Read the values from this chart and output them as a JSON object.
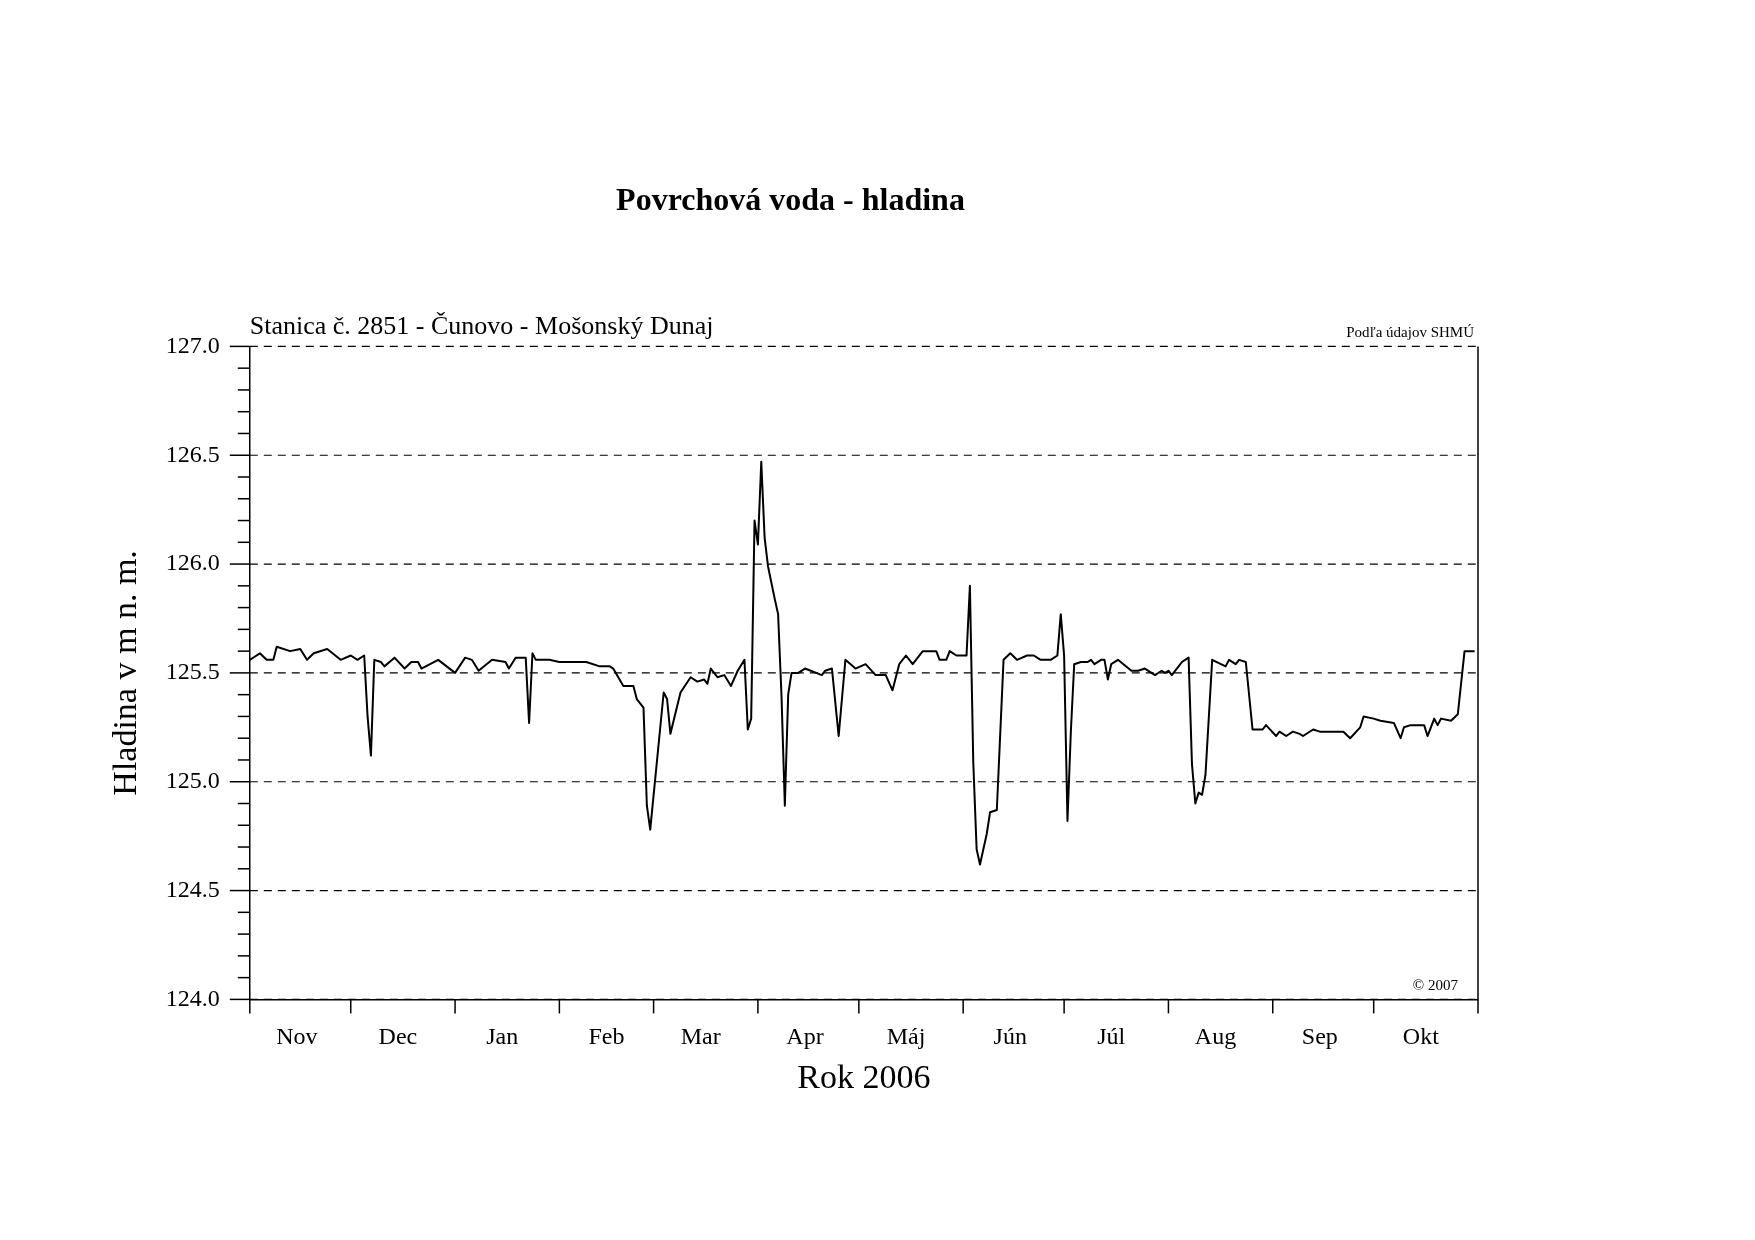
{
  "chart_data": {
    "type": "line",
    "title": "Povrchová voda - hladina",
    "subtitle": "Stanica č. 2851 - Čunovo - Mošonský Dunaj",
    "xlabel": "Rok 2006",
    "ylabel": "Hladina v m n. m.",
    "annotations": [
      "Podľa údajov SHMÚ",
      "© 2007"
    ],
    "x": [
      "2005-11-01",
      "2005-11-04",
      "2005-11-06",
      "2005-11-08",
      "2005-11-09",
      "2005-11-13",
      "2005-11-16",
      "2005-11-18",
      "2005-11-20",
      "2005-11-24",
      "2005-11-28",
      "2005-12-01",
      "2005-12-03",
      "2005-12-05",
      "2005-12-06",
      "2005-12-07",
      "2005-12-08",
      "2005-12-10",
      "2005-12-11",
      "2005-12-14",
      "2005-12-17",
      "2005-12-19",
      "2005-12-21",
      "2005-12-22",
      "2005-12-27",
      "2006-01-01",
      "2006-01-04",
      "2006-01-06",
      "2006-01-08",
      "2006-01-12",
      "2006-01-16",
      "2006-01-17",
      "2006-01-19",
      "2006-01-22",
      "2006-01-23",
      "2006-01-24",
      "2006-01-25",
      "2006-01-29",
      "2006-02-01",
      "2006-02-09",
      "2006-02-13",
      "2006-02-16",
      "2006-02-17",
      "2006-02-20",
      "2006-02-23",
      "2006-02-24",
      "2006-02-26",
      "2006-02-27",
      "2006-02-28",
      "2006-03-04",
      "2006-03-05",
      "2006-03-06",
      "2006-03-09",
      "2006-03-12",
      "2006-03-14",
      "2006-03-16",
      "2006-03-17",
      "2006-03-18",
      "2006-03-20",
      "2006-03-22",
      "2006-03-24",
      "2006-03-26",
      "2006-03-28",
      "2006-03-29",
      "2006-03-30",
      "2006-03-31",
      "2006-04-01",
      "2006-04-02",
      "2006-04-03",
      "2006-04-04",
      "2006-04-06",
      "2006-04-07",
      "2006-04-08",
      "2006-04-09",
      "2006-04-10",
      "2006-04-11",
      "2006-04-13",
      "2006-04-15",
      "2006-04-20",
      "2006-04-21",
      "2006-04-23",
      "2006-04-25",
      "2006-04-27",
      "2006-04-30",
      "2006-05-03",
      "2006-05-06",
      "2006-05-09",
      "2006-05-11",
      "2006-05-13",
      "2006-05-15",
      "2006-05-17",
      "2006-05-20",
      "2006-05-24",
      "2006-05-25",
      "2006-05-27",
      "2006-05-28",
      "2006-05-30",
      "2006-06-02",
      "2006-06-03",
      "2006-06-04",
      "2006-06-05",
      "2006-06-06",
      "2006-06-08",
      "2006-06-09",
      "2006-06-11",
      "2006-06-13",
      "2006-06-15",
      "2006-06-17",
      "2006-06-20",
      "2006-06-22",
      "2006-06-24",
      "2006-06-27",
      "2006-06-29",
      "2006-06-30",
      "2006-07-01",
      "2006-07-02",
      "2006-07-03",
      "2006-07-04",
      "2006-07-06",
      "2006-07-08",
      "2006-07-09",
      "2006-07-10",
      "2006-07-12",
      "2006-07-13",
      "2006-07-14",
      "2006-07-15",
      "2006-07-17",
      "2006-07-21",
      "2006-07-23",
      "2006-07-25",
      "2006-07-28",
      "2006-07-30",
      "2006-07-31",
      "2006-08-01",
      "2006-08-02",
      "2006-08-05",
      "2006-08-07",
      "2006-08-08",
      "2006-08-09",
      "2006-08-10",
      "2006-08-11",
      "2006-08-12",
      "2006-08-14",
      "2006-08-18",
      "2006-08-19",
      "2006-08-21",
      "2006-08-22",
      "2006-08-24",
      "2006-08-26",
      "2006-08-29",
      "2006-08-30",
      "2006-09-02",
      "2006-09-03",
      "2006-09-05",
      "2006-09-07",
      "2006-09-09",
      "2006-09-10",
      "2006-09-13",
      "2006-09-15",
      "2006-09-20",
      "2006-09-22",
      "2006-09-24",
      "2006-09-27",
      "2006-09-28",
      "2006-10-01",
      "2006-10-03",
      "2006-10-07",
      "2006-10-09",
      "2006-10-10",
      "2006-10-12",
      "2006-10-16",
      "2006-10-17",
      "2006-10-19",
      "2006-10-20",
      "2006-10-21",
      "2006-10-24",
      "2006-10-26",
      "2006-10-28",
      "2006-10-31"
    ],
    "series": [
      {
        "color": "#000000",
        "values": [
          125.56,
          125.59,
          125.56,
          125.56,
          125.62,
          125.6,
          125.61,
          125.56,
          125.59,
          125.61,
          125.56,
          125.58,
          125.56,
          125.58,
          125.3,
          125.12,
          125.56,
          125.55,
          125.53,
          125.57,
          125.52,
          125.55,
          125.55,
          125.52,
          125.56,
          125.5,
          125.57,
          125.56,
          125.51,
          125.56,
          125.55,
          125.52,
          125.57,
          125.57,
          125.27,
          125.59,
          125.56,
          125.56,
          125.55,
          125.55,
          125.53,
          125.53,
          125.52,
          125.44,
          125.44,
          125.38,
          125.34,
          124.89,
          124.78,
          125.41,
          125.38,
          125.22,
          125.41,
          125.48,
          125.46,
          125.47,
          125.45,
          125.52,
          125.48,
          125.49,
          125.44,
          125.51,
          125.56,
          125.24,
          125.29,
          126.2,
          126.09,
          126.47,
          126.12,
          125.99,
          125.84,
          125.77,
          125.4,
          124.89,
          125.4,
          125.5,
          125.5,
          125.52,
          125.49,
          125.51,
          125.52,
          125.21,
          125.56,
          125.52,
          125.54,
          125.49,
          125.49,
          125.42,
          125.54,
          125.58,
          125.54,
          125.6,
          125.6,
          125.56,
          125.56,
          125.6,
          125.58,
          125.58,
          125.9,
          125.09,
          124.69,
          124.62,
          124.76,
          124.86,
          124.87,
          125.56,
          125.59,
          125.56,
          125.58,
          125.58,
          125.56,
          125.56,
          125.58,
          125.77,
          125.58,
          124.82,
          125.23,
          125.54,
          125.55,
          125.55,
          125.56,
          125.54,
          125.56,
          125.56,
          125.47,
          125.54,
          125.56,
          125.51,
          125.51,
          125.52,
          125.49,
          125.51,
          125.5,
          125.51,
          125.49,
          125.55,
          125.57,
          125.08,
          124.9,
          124.95,
          124.94,
          125.03,
          125.56,
          125.53,
          125.56,
          125.54,
          125.56,
          125.55,
          125.24,
          125.24,
          125.26,
          125.21,
          125.23,
          125.21,
          125.23,
          125.22,
          125.21,
          125.24,
          125.23,
          125.23,
          125.23,
          125.2,
          125.25,
          125.3,
          125.29,
          125.28,
          125.27,
          125.2,
          125.25,
          125.26,
          125.26,
          125.21,
          125.29,
          125.26,
          125.29,
          125.28,
          125.31,
          125.6,
          125.6
        ]
      }
    ],
    "xlim": [
      "2005-11-01",
      "2006-11-01"
    ],
    "xticks": [
      {
        "value": "2005-11-01",
        "label": null
      },
      {
        "value": "2005-11-15",
        "label": "Nov"
      },
      {
        "value": "2005-12-01",
        "label": null
      },
      {
        "value": "2005-12-15",
        "label": "Dec"
      },
      {
        "value": "2006-01-01",
        "label": null
      },
      {
        "value": "2006-01-15",
        "label": "Jan"
      },
      {
        "value": "2006-02-01",
        "label": null
      },
      {
        "value": "2006-02-15",
        "label": "Feb"
      },
      {
        "value": "2006-03-01",
        "label": null
      },
      {
        "value": "2006-03-15",
        "label": "Mar"
      },
      {
        "value": "2006-04-01",
        "label": null
      },
      {
        "value": "2006-04-15",
        "label": "Apr"
      },
      {
        "value": "2006-05-01",
        "label": null
      },
      {
        "value": "2006-05-15",
        "label": "Máj"
      },
      {
        "value": "2006-06-01",
        "label": null
      },
      {
        "value": "2006-06-15",
        "label": "Jún"
      },
      {
        "value": "2006-07-01",
        "label": null
      },
      {
        "value": "2006-07-15",
        "label": "Júl"
      },
      {
        "value": "2006-08-01",
        "label": null
      },
      {
        "value": "2006-08-15",
        "label": "Aug"
      },
      {
        "value": "2006-09-01",
        "label": null
      },
      {
        "value": "2006-09-15",
        "label": "Sep"
      },
      {
        "value": "2006-10-01",
        "label": null
      },
      {
        "value": "2006-10-15",
        "label": "Okt"
      },
      {
        "value": "2006-11-01",
        "label": null
      }
    ],
    "ylim": [
      124.0,
      127.0
    ],
    "yticks": [
      {
        "value": 124.0,
        "label": "124.0"
      },
      {
        "value": 124.1,
        "label": null
      },
      {
        "value": 124.2,
        "label": null
      },
      {
        "value": 124.3,
        "label": null
      },
      {
        "value": 124.4,
        "label": null
      },
      {
        "value": 124.5,
        "label": "124.5"
      },
      {
        "value": 124.6,
        "label": null
      },
      {
        "value": 124.7,
        "label": null
      },
      {
        "value": 124.8,
        "label": null
      },
      {
        "value": 124.9,
        "label": null
      },
      {
        "value": 125.0,
        "label": "125.0"
      },
      {
        "value": 125.1,
        "label": null
      },
      {
        "value": 125.2,
        "label": null
      },
      {
        "value": 125.3,
        "label": null
      },
      {
        "value": 125.4,
        "label": null
      },
      {
        "value": 125.5,
        "label": "125.5"
      },
      {
        "value": 125.6,
        "label": null
      },
      {
        "value": 125.7,
        "label": null
      },
      {
        "value": 125.8,
        "label": null
      },
      {
        "value": 125.9,
        "label": null
      },
      {
        "value": 126.0,
        "label": "126.0"
      },
      {
        "value": 126.1,
        "label": null
      },
      {
        "value": 126.2,
        "label": null
      },
      {
        "value": 126.3,
        "label": null
      },
      {
        "value": 126.4,
        "label": null
      },
      {
        "value": 126.5,
        "label": "126.5"
      },
      {
        "value": 126.6,
        "label": null
      },
      {
        "value": 126.7,
        "label": null
      },
      {
        "value": 126.8,
        "label": null
      },
      {
        "value": 126.9,
        "label": null
      },
      {
        "value": 127.0,
        "label": "127.0"
      }
    ],
    "grid": "y",
    "line_style": "solid"
  }
}
